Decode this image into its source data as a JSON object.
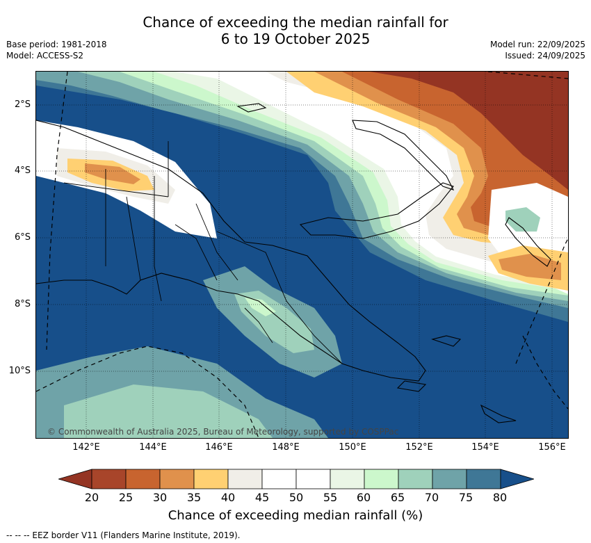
{
  "title": {
    "line1": "Chance of exceeding the median rainfall for",
    "line2": "6 to 19 October 2025"
  },
  "meta": {
    "base_period": "Base period: 1981-2018",
    "model": "Model: ACCESS-S2",
    "model_run": "Model run: 22/09/2025",
    "issued": "Issued: 24/09/2025"
  },
  "map": {
    "copyright": "© Commonwealth of Australia 2025, Bureau of Meteorology, supported by COSPPac",
    "lat_labels": [
      "2°S",
      "4°S",
      "6°S",
      "8°S",
      "10°S"
    ],
    "lon_labels": [
      "142°E",
      "144°E",
      "146°E",
      "148°E",
      "150°E",
      "152°E",
      "154°E",
      "156°E"
    ],
    "colors": {
      "ocean_high": "#174f8a",
      "high_75_80": "#3f7796",
      "high_70_75": "#6fa3a8",
      "high_65_70": "#9fd1bb",
      "high_60_65": "#ccf7cc",
      "mid_55_60": "#eaf6e6",
      "neutral": "#ffffff",
      "neutral_40_45": "#f0eee8",
      "low_35_40": "#ffd072",
      "low_30_35": "#e0914c",
      "low_25_30": "#c8642f",
      "low_20_25": "#a8452a",
      "low_min": "#943423",
      "land_outline": "#000000"
    }
  },
  "colorbar": {
    "ticks": [
      "20",
      "25",
      "30",
      "35",
      "40",
      "45",
      "50",
      "55",
      "60",
      "65",
      "70",
      "75",
      "80"
    ],
    "title": "Chance of exceeding median rainfall (%)"
  },
  "footer": {
    "legend_text": "-- -- -- EEZ border V11 (Flanders Marine Institute, 2019)."
  }
}
